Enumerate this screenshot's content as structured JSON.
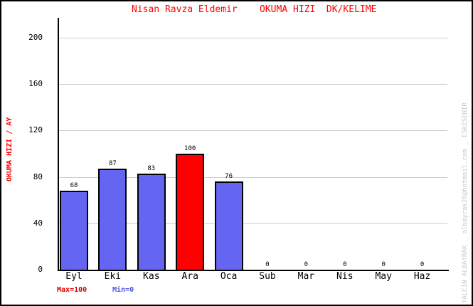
{
  "chart_data": {
    "type": "bar",
    "title": "Nisan Ravza Eldemir    OKUMA HIZI  DK/KELIME",
    "ylabel": "OKUMA HIZI / AY",
    "xlabel": "",
    "categories": [
      "Eyl",
      "Eki",
      "Kas",
      "Ara",
      "Oca",
      "Sub",
      "Mar",
      "Nis",
      "May",
      "Haz"
    ],
    "values": [
      68,
      87,
      83,
      100,
      76,
      0,
      0,
      0,
      0,
      0
    ],
    "bar_colors": [
      "#6466f2",
      "#6466f2",
      "#6466f2",
      "#ff0000",
      "#6466f2",
      "#6466f2",
      "#6466f2",
      "#6466f2",
      "#6466f2",
      "#6466f2"
    ],
    "yticks": [
      0,
      40,
      80,
      120,
      160,
      200
    ],
    "ylim": [
      0,
      216
    ],
    "grid": true,
    "legend_position": "bottom-left",
    "annotations": {
      "max_label": "Max=100",
      "min_label": "Min=0"
    }
  },
  "watermark": "YALCIN ALBAYRAK _ albayrak26@hotmail.com _ ESKISEHIR",
  "colors": {
    "title": "#ff0000",
    "ylabel": "#ff0000",
    "max_label": "#dd0000",
    "min_label": "#5555dd",
    "bar_border": "#000000",
    "axis": "#000000",
    "grid": "#cccccc",
    "tick_text": "#000000",
    "value_label": "#000000",
    "watermark": "#c6c6c6",
    "background": "#ffffff"
  }
}
